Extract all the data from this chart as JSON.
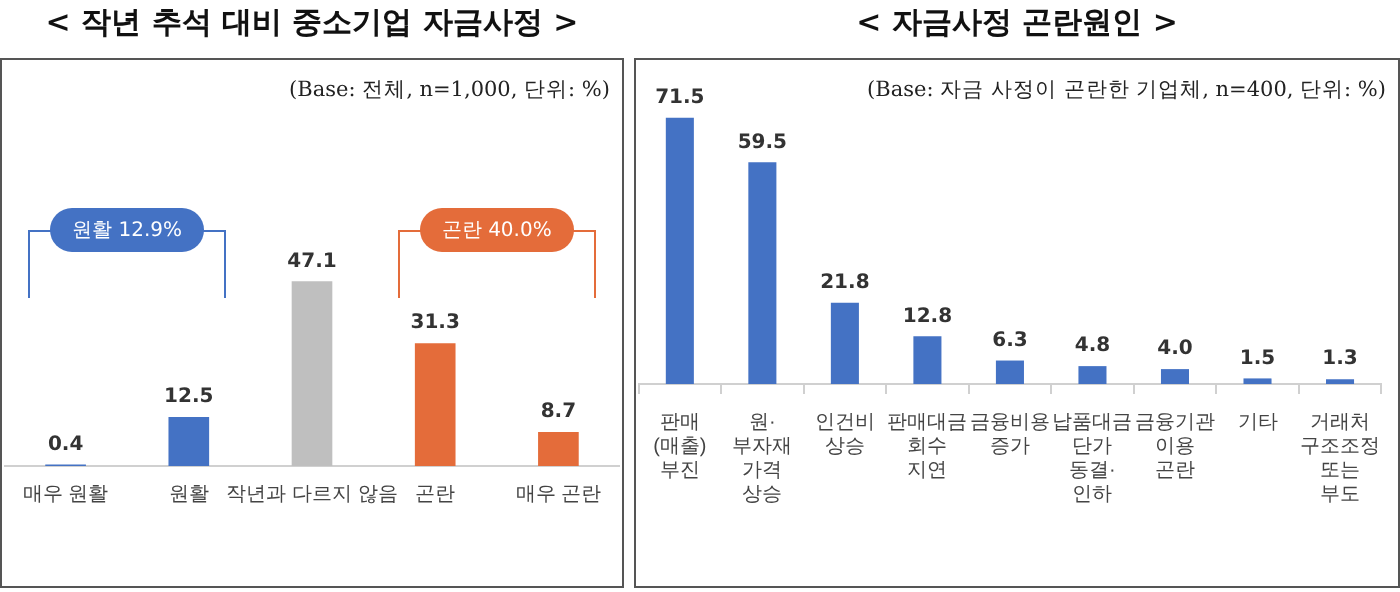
{
  "chart_data": [
    {
      "type": "bar",
      "title": "< 작년 추석 대비 중소기업 자금사정 >",
      "subtitle": "(Base: 전체, n=1,000, 단위: %)",
      "categories": [
        "매우 원활",
        "원활",
        "작년과 다르지 않음",
        "곤란",
        "매우 곤란"
      ],
      "values": [
        0.4,
        12.5,
        47.1,
        31.3,
        8.7
      ],
      "colors": [
        "#4472c4",
        "#4472c4",
        "#bfbfbf",
        "#e46c3a",
        "#e46c3a"
      ],
      "annotations": [
        "원활 12.9%",
        "곤란 40.0%"
      ],
      "data_labels": true,
      "grid": false,
      "legend": false
    },
    {
      "type": "bar",
      "title": "< 자금사정 곤란원인 >",
      "subtitle": "(Base: 자금 사정이 곤란한 기업체, n=400, 단위: %)",
      "categories": [
        "판매(매출)\n부진",
        "원·부자재\n가격 상승",
        "인건비\n상승",
        "판매대금\n회수 지연",
        "금융비용\n증가",
        "납품대금 단가\n동결·인하",
        "금융기관\n이용 곤란",
        "기타",
        "거래처\n구조조정 또는\n부도"
      ],
      "values": [
        71.5,
        59.5,
        21.8,
        12.8,
        6.3,
        4.8,
        4.0,
        1.5,
        1.3
      ],
      "value_labels": [
        "71.5",
        "59.5",
        "21.8",
        "12.8",
        "6.3",
        "4.8",
        "4.0",
        "1.5",
        "1.3"
      ],
      "color": "#4472c4",
      "grid": false,
      "legend": false
    }
  ]
}
